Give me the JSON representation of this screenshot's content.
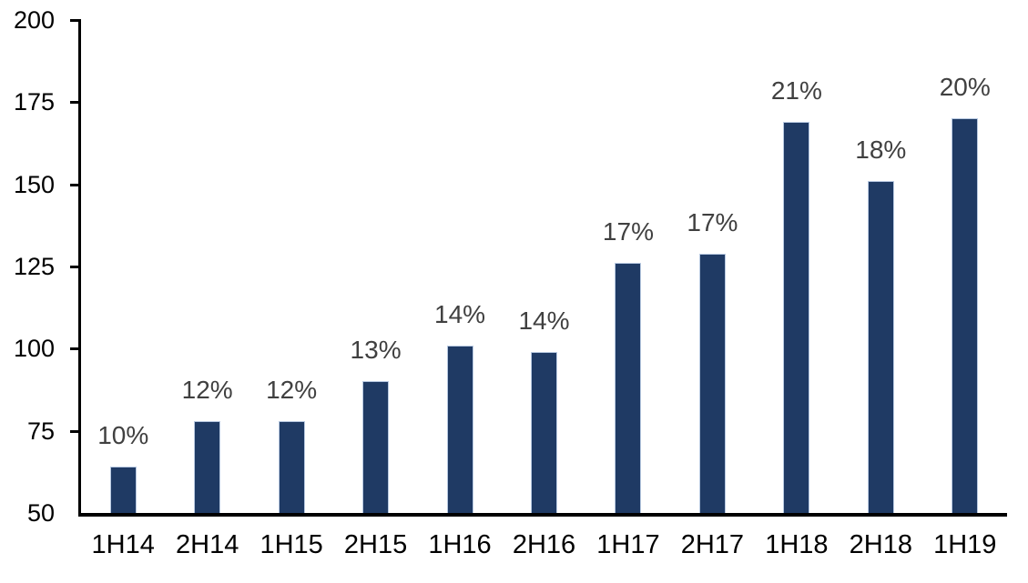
{
  "chart_data": {
    "type": "bar",
    "categories": [
      "1H14",
      "2H14",
      "1H15",
      "2H15",
      "1H16",
      "2H16",
      "1H17",
      "2H17",
      "1H18",
      "2H18",
      "1H19"
    ],
    "values": [
      64,
      78,
      78,
      90,
      101,
      99,
      126,
      129,
      169,
      151,
      170
    ],
    "bar_labels": [
      "10%",
      "12%",
      "12%",
      "13%",
      "14%",
      "14%",
      "17%",
      "17%",
      "21%",
      "18%",
      "20%"
    ],
    "title": "",
    "xlabel": "",
    "ylabel": "",
    "ylim": [
      50,
      200
    ],
    "yticks": [
      50,
      75,
      100,
      125,
      150,
      175,
      200
    ],
    "grid": "off",
    "legend": "none",
    "colors": {
      "bar_fill": "#1F3A64",
      "bar_border": "#B8C9E1",
      "value_label": "#404040",
      "axis": "#000000",
      "tick_label": "#000000",
      "background": "#FFFFFF"
    }
  }
}
